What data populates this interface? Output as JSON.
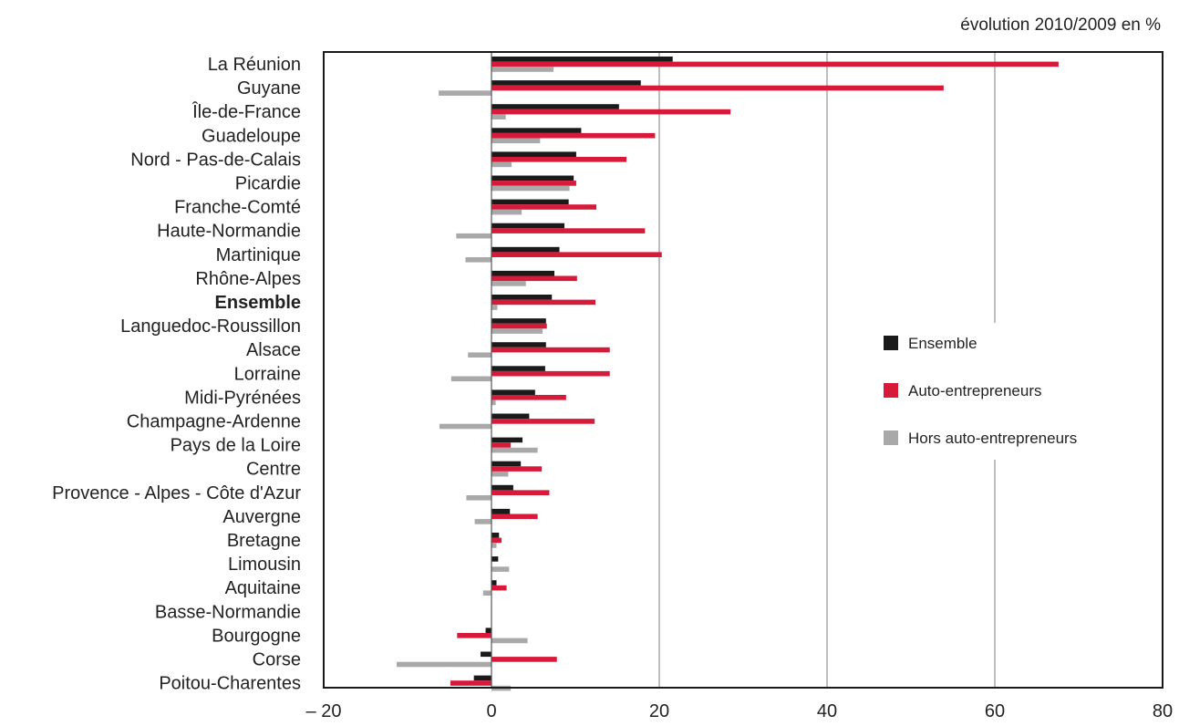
{
  "chart_data": {
    "type": "bar",
    "orientation": "horizontal",
    "unit_label": "évolution 2010/2009 en %",
    "xlim": [
      -20,
      80
    ],
    "xticks": [
      "– 20",
      "0",
      "20",
      "40",
      "60",
      "80"
    ],
    "xtick_values": [
      -20,
      0,
      20,
      40,
      60,
      80
    ],
    "grid": "vertical lines",
    "legend_position": "right",
    "highlight_category": "Ensemble",
    "categories": [
      "La Réunion",
      "Guyane",
      "Île-de-France",
      "Guadeloupe",
      "Nord - Pas-de-Calais",
      "Picardie",
      "Franche-Comté",
      "Haute-Normandie",
      "Martinique",
      "Rhône-Alpes",
      "Ensemble",
      "Languedoc-Roussillon",
      "Alsace",
      "Lorraine",
      "Midi-Pyrénées",
      "Champagne-Ardenne",
      "Pays de la Loire",
      "Centre",
      "Provence - Alpes - Côte d'Azur",
      "Auvergne",
      "Bretagne",
      "Limousin",
      "Aquitaine",
      "Basse-Normandie",
      "Bourgogne",
      "Corse",
      "Poitou-Charentes"
    ],
    "series": [
      {
        "name": "Ensemble",
        "color": "#1a1a1a",
        "values": [
          21.6,
          17.8,
          15.2,
          10.7,
          10.1,
          9.8,
          9.2,
          8.7,
          8.1,
          7.5,
          7.2,
          6.5,
          6.5,
          6.4,
          5.2,
          4.5,
          3.7,
          3.5,
          2.6,
          2.2,
          0.9,
          0.8,
          0.6,
          0.0,
          -0.7,
          -1.3,
          -2.1
        ]
      },
      {
        "name": "Auto-entrepreneurs",
        "color": "#d7193a",
        "values": [
          67.6,
          53.9,
          28.5,
          19.5,
          16.1,
          10.1,
          12.5,
          18.3,
          20.3,
          10.2,
          12.4,
          6.6,
          14.1,
          14.1,
          8.9,
          12.3,
          2.3,
          6.0,
          6.9,
          5.5,
          1.2,
          0.0,
          1.8,
          0.0,
          -4.1,
          7.8,
          -4.9
        ]
      },
      {
        "name": "Hors auto-entrepreneurs",
        "color": "#a9a9a9",
        "values": [
          7.4,
          -6.3,
          1.7,
          5.8,
          2.4,
          9.3,
          3.6,
          -4.2,
          -3.1,
          4.1,
          0.7,
          6.1,
          -2.8,
          -4.8,
          0.5,
          -6.2,
          5.5,
          2.0,
          -3.0,
          -2.0,
          0.6,
          2.1,
          -1.0,
          0.0,
          4.3,
          -11.3,
          2.3
        ]
      }
    ]
  }
}
